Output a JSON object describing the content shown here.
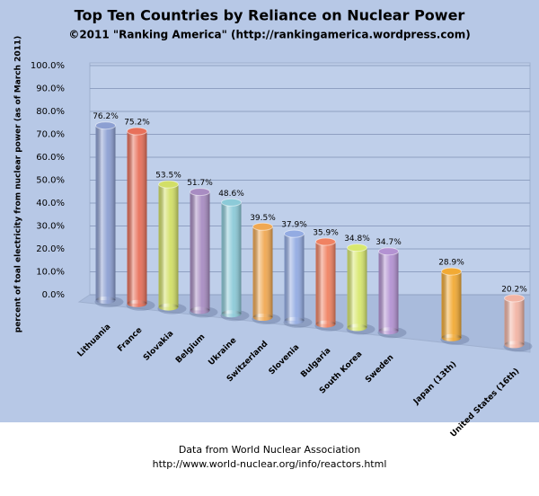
{
  "chart_data": {
    "type": "bar",
    "title": "Top Ten Countries by Reliance on Nuclear Power",
    "subtitle": "©2011 \"Ranking America\" (http://rankingamerica.wordpress.com)",
    "y_label": "percent of toal electricity from nuclear power (as of March 2011)",
    "categories": [
      "Lithuania",
      "France",
      "Slovakia",
      "Belgium",
      "Ukraine",
      "Switzerland",
      "Slovenia",
      "Bulgaria",
      "South Korea",
      "Sweden",
      null,
      "Japan (13th)",
      null,
      "United States (16th)"
    ],
    "values": [
      76.2,
      75.2,
      53.5,
      51.7,
      48.6,
      39.5,
      37.9,
      35.9,
      34.8,
      34.7,
      null,
      28.9,
      null,
      20.2
    ],
    "value_labels": [
      "76.2%",
      "75.2%",
      "53.5%",
      "51.7%",
      "48.6%",
      "39.5%",
      "37.9%",
      "35.9%",
      "34.8%",
      "34.7%",
      null,
      "28.9%",
      null,
      "20.2%"
    ],
    "colors": [
      "#8c9fd2",
      "#e8705a",
      "#d2df66",
      "#a88cc2",
      "#8ccad8",
      "#f0a852",
      "#93abe2",
      "#f08262",
      "#d8e86e",
      "#b392d2",
      null,
      "#f2aa34",
      null,
      "#f2b4a4"
    ],
    "ylim": [
      0,
      100
    ],
    "yticks": [
      {
        "value": 0,
        "label": "0.0%"
      },
      {
        "value": 10,
        "label": "10.0%"
      },
      {
        "value": 20,
        "label": "20.0%"
      },
      {
        "value": 30,
        "label": "30.0%"
      },
      {
        "value": 40,
        "label": "40.0%"
      },
      {
        "value": 50,
        "label": "50.0%"
      },
      {
        "value": 60,
        "label": "60.0%"
      },
      {
        "value": 70,
        "label": "70.0%"
      },
      {
        "value": 80,
        "label": "80.0%"
      },
      {
        "value": 90,
        "label": "90.0%"
      },
      {
        "value": 100,
        "label": "100.0%"
      }
    ],
    "grid": true,
    "source": [
      "Data from World Nuclear Association",
      "http://www.world-nuclear.org/info/reactors.html"
    ]
  }
}
